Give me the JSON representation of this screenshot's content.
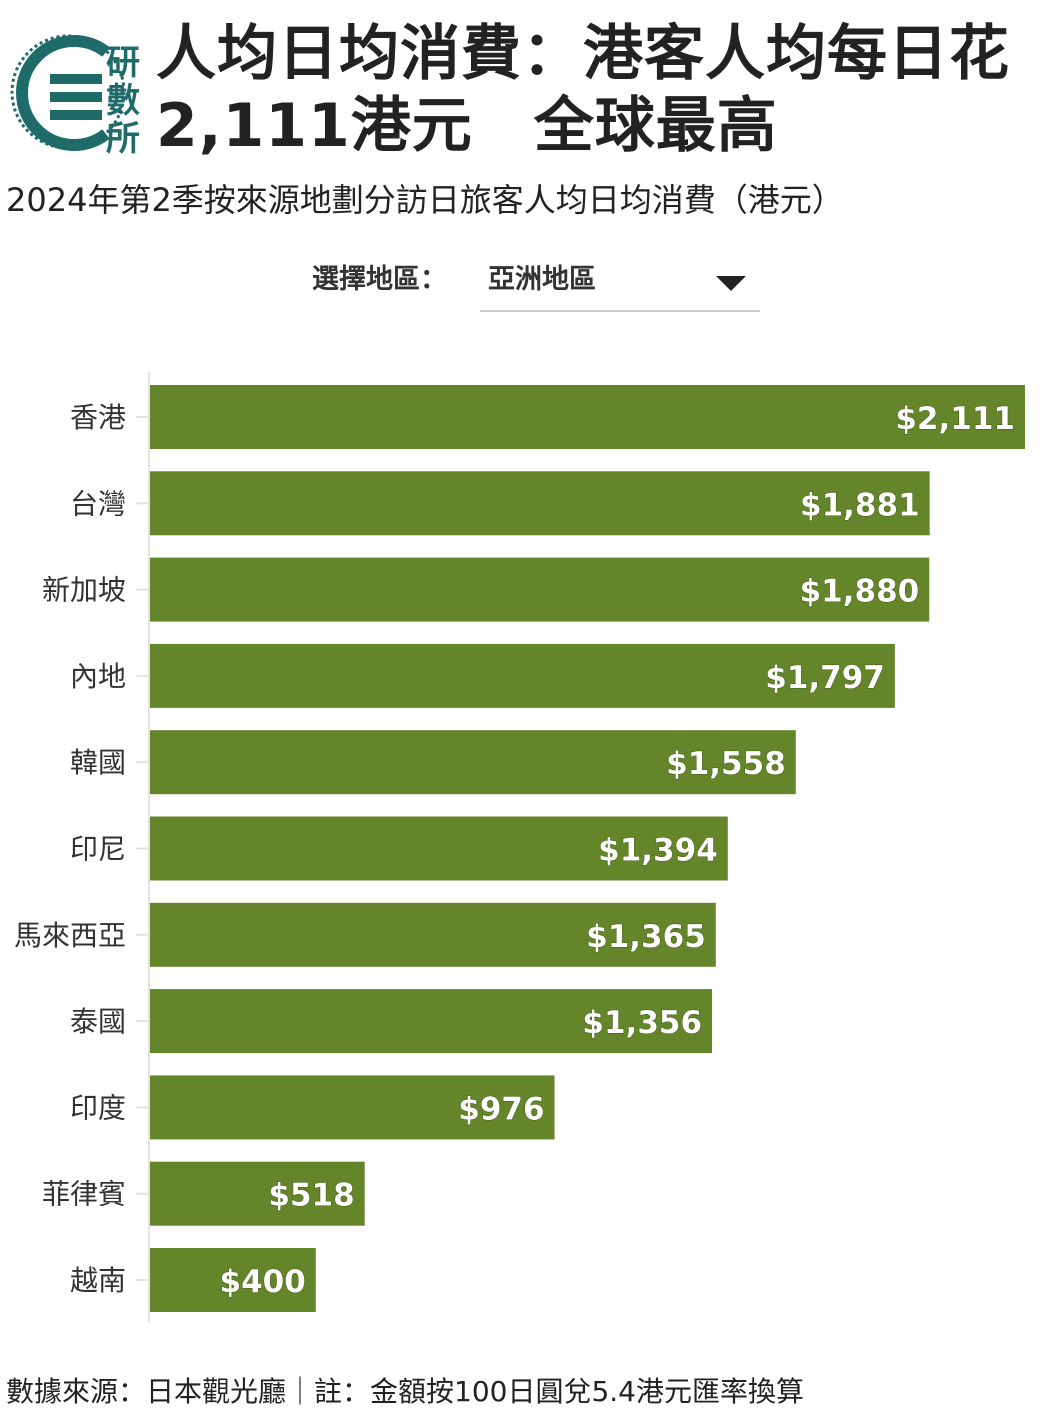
{
  "header": {
    "logo_text": "研數所",
    "title": "人均日均消費：港客人均每日花2,111港元　全球最高",
    "subtitle": "2024年第2季按來源地劃分訪日旅客人均日均消費（港元）"
  },
  "filter": {
    "label": "選擇地區：",
    "selected": "亞洲地區",
    "dropdown_icon": "chevron-down-icon"
  },
  "colors": {
    "bar": "#65852a",
    "bar_label": "#ffffff",
    "logo": "#1f6b6a"
  },
  "chart_data": {
    "type": "bar",
    "orientation": "horizontal",
    "categories": [
      "香港",
      "台灣",
      "新加坡",
      "內地",
      "韓國",
      "印尼",
      "馬來西亞",
      "泰國",
      "印度",
      "菲律賓",
      "越南"
    ],
    "values": [
      2111,
      1881,
      1880,
      1797,
      1558,
      1394,
      1365,
      1356,
      976,
      518,
      400
    ],
    "data_labels": [
      "$2,111",
      "$1,881",
      "$1,880",
      "$1,797",
      "$1,558",
      "$1,394",
      "$1,365",
      "$1,356",
      "$976",
      "$518",
      "$400"
    ],
    "xlim": [
      0,
      2111
    ],
    "grid": false,
    "legend": "none"
  },
  "footer": {
    "text": "數據來源：日本觀光廳｜註：金額按100日圓兌5.4港元匯率換算"
  }
}
